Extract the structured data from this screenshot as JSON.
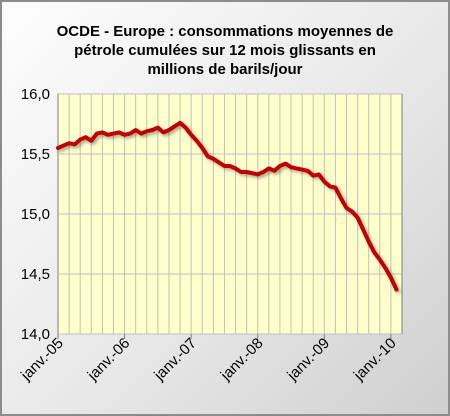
{
  "chart_data": {
    "type": "line",
    "title_lines": [
      "OCDE - Europe : consommations moyennes de",
      "pétrole cumulées sur 12 mois glissants en",
      "millions de barils/jour"
    ],
    "xlabel": "",
    "ylabel": "",
    "ylim": [
      14.0,
      16.0
    ],
    "y_ticks": [
      "14,0",
      "14,5",
      "15,0",
      "15,5",
      "16,0"
    ],
    "x_tick_labels": [
      "janv.-05",
      "janv.-06",
      "janv.-07",
      "janv.-08",
      "janv.-09",
      "janv.-10"
    ],
    "grid": true,
    "legend": "none",
    "colors": {
      "line": "#c00000",
      "plot_background": "#ffffcc",
      "grid": "#c0c0c0"
    },
    "series": [
      {
        "months_from_jan_2005": [
          0,
          1,
          2,
          3,
          4,
          5,
          6,
          7,
          8,
          9,
          10,
          11,
          12,
          13,
          14,
          15,
          16,
          17,
          18,
          19,
          20,
          21,
          22,
          23,
          24,
          25,
          26,
          27,
          28,
          29,
          30,
          31,
          32,
          33,
          34,
          35,
          36,
          37,
          38,
          39,
          40,
          41,
          42,
          43,
          44,
          45,
          46,
          47,
          48,
          49,
          50,
          51,
          52,
          53,
          54,
          55,
          56,
          57,
          58,
          59,
          60,
          61
        ],
        "values": [
          15.55,
          15.57,
          15.59,
          15.58,
          15.62,
          15.64,
          15.61,
          15.67,
          15.68,
          15.66,
          15.67,
          15.68,
          15.66,
          15.67,
          15.7,
          15.67,
          15.69,
          15.7,
          15.72,
          15.68,
          15.7,
          15.73,
          15.76,
          15.72,
          15.66,
          15.61,
          15.55,
          15.48,
          15.46,
          15.43,
          15.4,
          15.4,
          15.38,
          15.35,
          15.35,
          15.34,
          15.33,
          15.35,
          15.38,
          15.36,
          15.4,
          15.42,
          15.39,
          15.38,
          15.37,
          15.36,
          15.32,
          15.33,
          15.27,
          15.23,
          15.22,
          15.13,
          15.05,
          15.02,
          14.97,
          14.87,
          14.77,
          14.68,
          14.62,
          14.55,
          14.47,
          14.37
        ]
      }
    ]
  }
}
